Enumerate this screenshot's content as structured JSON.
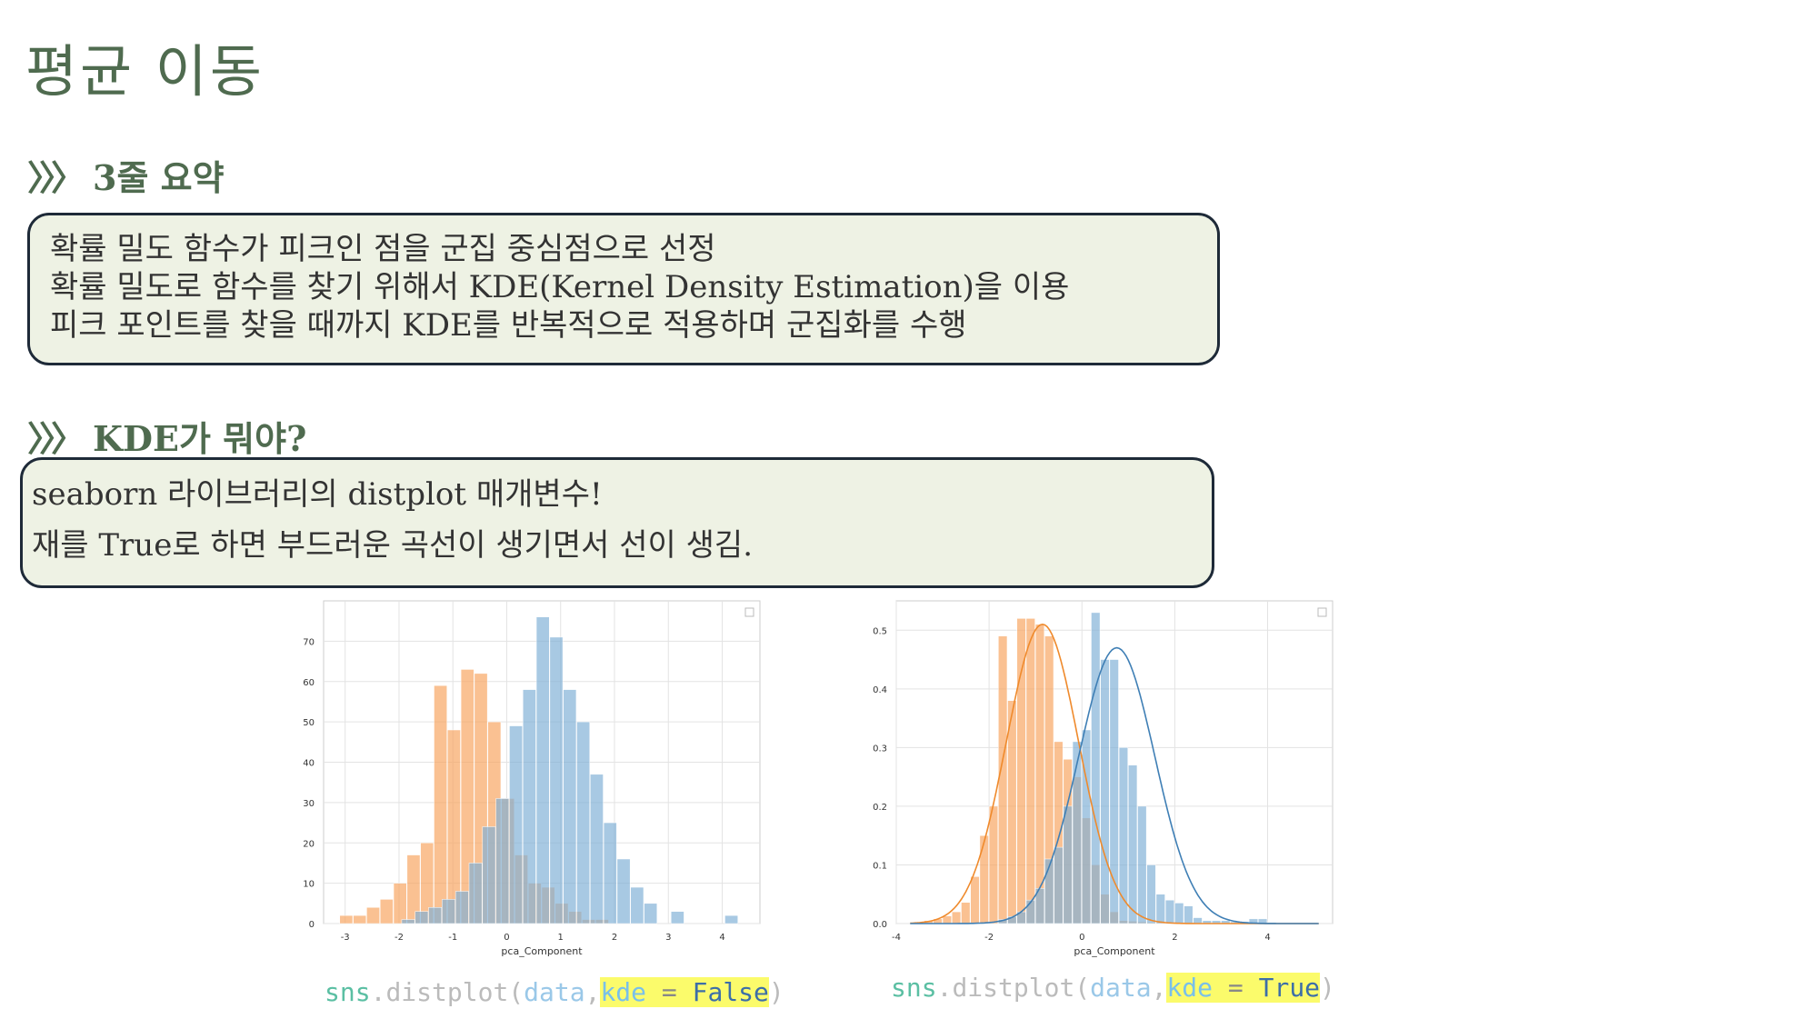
{
  "title": "평균 이동",
  "summary": {
    "heading_chevrons": "〉〉〉",
    "heading": "3줄 요약",
    "lines": [
      "확률 밀도 함수가 피크인 점을 군집 중심점으로 선정",
      "확률 밀도로 함수를 찾기 위해서 KDE(Kernel Density Estimation)을 이용",
      "피크 포인트를 찾을 때까지 KDE를 반복적으로 적용하며 군집화를 수행"
    ]
  },
  "kde": {
    "heading_chevrons": "〉〉〉",
    "heading": "KDE가 뭐야?",
    "lines": [
      "seaborn 라이브러리의 distplot 매개변수!",
      "재를 True로 하면 부드러운 곡선이 생기면서 선이 생김."
    ]
  },
  "code_left": {
    "fn": "sns",
    "dot": ".",
    "method": "distplot",
    "open": "(",
    "arg": "data",
    "comma": ",",
    "kw": "kde",
    "eq": " = ",
    "val": "False",
    "close": ")"
  },
  "code_right": {
    "fn": "sns",
    "dot": ".",
    "method": "distplot",
    "open": "(",
    "arg": "data",
    "comma": ",",
    "kw": "kde",
    "eq": " = ",
    "val": "True",
    "close": ")"
  },
  "chart_data": [
    {
      "type": "bar",
      "xlabel": "pca_Component",
      "ylabel": "",
      "xlim": [
        -3.4,
        4.7
      ],
      "ylim": [
        0,
        80
      ],
      "xticks": [
        -3,
        -2,
        -1,
        0,
        1,
        2,
        3,
        4
      ],
      "yticks": [
        0,
        10,
        20,
        30,
        40,
        50,
        60,
        70
      ],
      "grid": true,
      "series": [
        {
          "color": "#f7a45f",
          "bins": [
            -3.1,
            -2.85,
            -2.6,
            -2.35,
            -2.1,
            -1.85,
            -1.6,
            -1.35,
            -1.1,
            -0.85,
            -0.6,
            -0.35,
            -0.1,
            0.15,
            0.4,
            0.65,
            0.9,
            1.15,
            1.4,
            1.65,
            1.9
          ],
          "values": [
            2,
            2,
            4,
            6,
            10,
            17,
            20,
            59,
            48,
            63,
            62,
            50,
            31,
            17,
            10,
            9,
            5,
            3,
            1,
            1
          ]
        },
        {
          "color": "#7fafd6",
          "bins": [
            -1.95,
            -1.7,
            -1.45,
            -1.2,
            -0.95,
            -0.7,
            -0.45,
            -0.2,
            0.05,
            0.3,
            0.55,
            0.8,
            1.05,
            1.3,
            1.55,
            1.8,
            2.05,
            2.3,
            2.55,
            2.8,
            3.05,
            3.3,
            3.55,
            3.8,
            4.05,
            4.3
          ],
          "values": [
            1,
            3,
            4,
            6,
            8,
            15,
            24,
            31,
            49,
            58,
            76,
            71,
            58,
            50,
            37,
            25,
            16,
            9,
            5,
            0,
            3,
            0,
            0,
            0,
            2
          ]
        }
      ]
    },
    {
      "type": "bar",
      "xlabel": "pca_Component",
      "ylabel": "",
      "xlim": [
        -4,
        5.4
      ],
      "ylim": [
        0,
        0.55
      ],
      "xticks": [
        -4,
        -2,
        0,
        2,
        4
      ],
      "yticks": [
        0.0,
        0.1,
        0.2,
        0.3,
        0.4,
        0.5
      ],
      "grid": true,
      "series": [
        {
          "color": "#f7a45f",
          "bins": [
            -3.6,
            -3.4,
            -3.2,
            -3.0,
            -2.8,
            -2.6,
            -2.4,
            -2.2,
            -2.0,
            -1.8,
            -1.6,
            -1.4,
            -1.2,
            -1.0,
            -0.8,
            -0.6,
            -0.4,
            -0.2,
            0.0,
            0.2,
            0.4,
            0.6,
            0.8,
            1.0,
            1.2,
            1.4,
            1.6,
            1.8,
            2.0
          ],
          "values": [
            0.003,
            0.005,
            0.008,
            0.013,
            0.02,
            0.036,
            0.08,
            0.15,
            0.2,
            0.49,
            0.38,
            0.52,
            0.52,
            0.51,
            0.49,
            0.31,
            0.28,
            0.25,
            0.18,
            0.1,
            0.05,
            0.02,
            0.005,
            0.004,
            0.003,
            0.002,
            0.002,
            0.002
          ]
        },
        {
          "color": "#7fafd6",
          "bins": [
            -1.8,
            -1.6,
            -1.4,
            -1.2,
            -1.0,
            -0.8,
            -0.6,
            -0.4,
            -0.2,
            0.0,
            0.2,
            0.4,
            0.6,
            0.8,
            1.0,
            1.2,
            1.4,
            1.6,
            1.8,
            2.0,
            2.2,
            2.4,
            2.6,
            2.8,
            3.0,
            3.2,
            3.4,
            3.6,
            3.8,
            4.0,
            4.2
          ],
          "values": [
            0.007,
            0.012,
            0.02,
            0.04,
            0.06,
            0.11,
            0.13,
            0.2,
            0.31,
            0.33,
            0.53,
            0.45,
            0.45,
            0.3,
            0.27,
            0.2,
            0.1,
            0.05,
            0.04,
            0.035,
            0.03,
            0.01,
            0.005,
            0.005,
            0.005,
            0.003,
            0.003,
            0.008,
            0.008,
            0.002
          ]
        }
      ],
      "kde": [
        {
          "color": "#ef8a2c",
          "mean": -0.85,
          "sd": 0.78,
          "peak": 0.51
        },
        {
          "color": "#3f7fb5",
          "mean": 0.75,
          "sd": 0.82,
          "peak": 0.47
        }
      ]
    }
  ]
}
